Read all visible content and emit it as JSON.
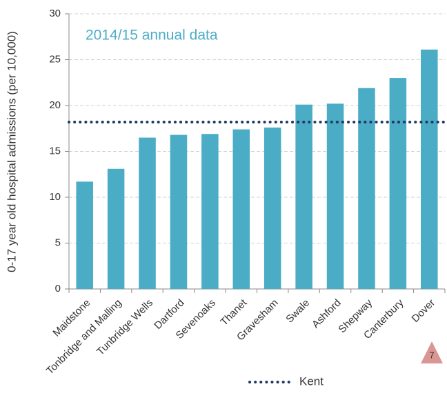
{
  "chart_data": {
    "type": "bar",
    "annotation": "2014/15 annual data",
    "y_label": "0-17 year old hospital admissions (per 10,000)",
    "categories": [
      "Maidstone",
      "Tonbridge and Malling",
      "Tunbridge Wells",
      "Dartford",
      "Sevenoaks",
      "Thanet",
      "Gravesham",
      "Swale",
      "Ashford",
      "Shepway",
      "Canterbury",
      "Dover"
    ],
    "values": [
      11.7,
      13.1,
      16.5,
      16.8,
      16.9,
      17.4,
      17.6,
      20.1,
      20.2,
      21.9,
      23.0,
      26.1
    ],
    "color": "#4bacc6",
    "reference": {
      "name": "Kent",
      "value": 18.2,
      "color": "#1f3864"
    },
    "ylim": [
      0,
      30
    ],
    "yticks": [
      0,
      5,
      10,
      15,
      20,
      25,
      30
    ],
    "grid": true,
    "page_number": "7"
  }
}
